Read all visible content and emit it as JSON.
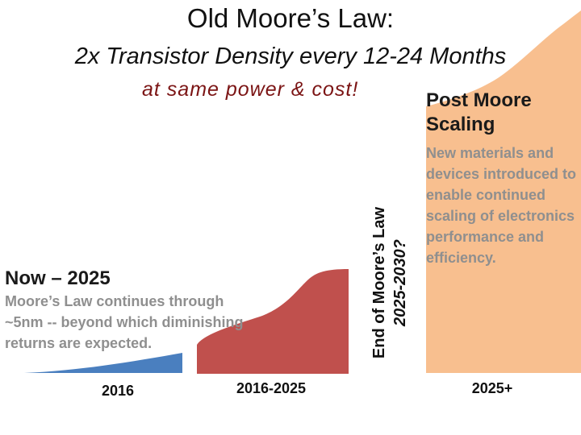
{
  "header": {
    "title": "Old Moore’s Law:",
    "subtitle": "2x Transistor Density every 12-24 Months",
    "note": "at same power & cost!"
  },
  "phases": [
    {
      "period": "2016",
      "color": "#4a7fbf"
    },
    {
      "title": "Now – 2025",
      "description": "Moore’s Law continues through ~5nm -- beyond which diminishing returns are expected.",
      "period": "2016-2025",
      "color": "#c0504d"
    },
    {
      "end_label": "End of Moore’s Law",
      "end_years": "2025-2030?"
    },
    {
      "title": "Post Moore Scaling",
      "description": "New materials and devices introduced to enable continued scaling of electronics performance and efficiency.",
      "period": "2025+",
      "color": "#f8bf8f"
    }
  ]
}
